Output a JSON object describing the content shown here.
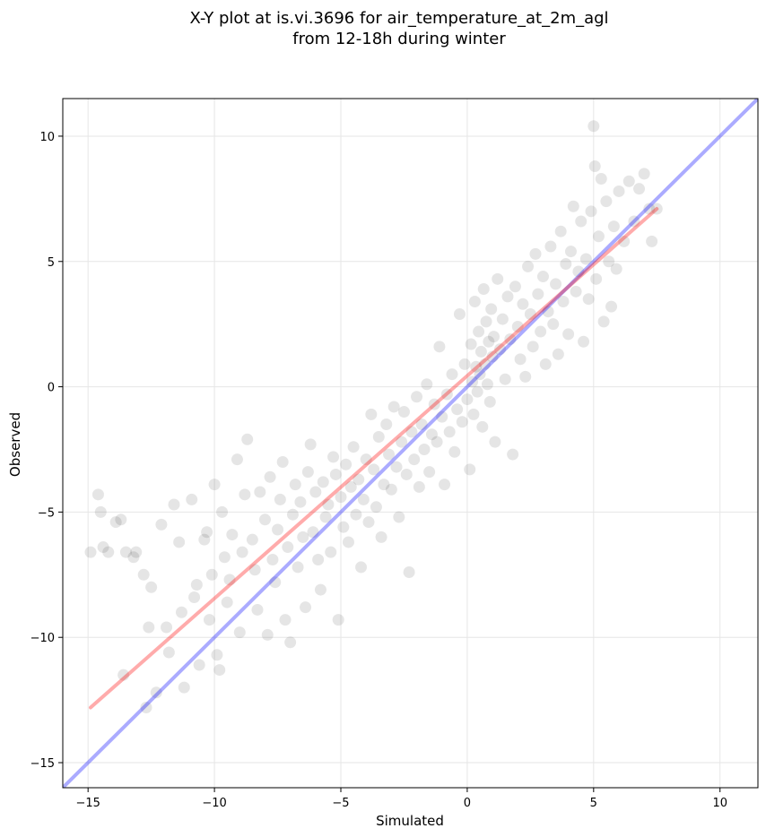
{
  "chart_data": {
    "type": "scatter",
    "title": [
      "X-Y plot at is.vi.3696 for air_temperature_at_2m_agl",
      "from 12-18h during winter"
    ],
    "xlabel": "Simulated",
    "ylabel": "Observed",
    "xlim": [
      -16,
      11.5
    ],
    "ylim": [
      -16,
      11.5
    ],
    "xticks": [
      -15,
      -10,
      -5,
      0,
      5,
      10
    ],
    "yticks": [
      -15,
      -10,
      -5,
      0,
      5,
      10
    ],
    "xtick_labels": [
      "−15",
      "−10",
      "−5",
      "0",
      "5",
      "10"
    ],
    "ytick_labels": [
      "−15",
      "−10",
      "−5",
      "0",
      "5",
      "10"
    ],
    "grid": true,
    "point_color": "#000000",
    "point_opacity": 0.1,
    "lines": [
      {
        "role": "identity (1:1)",
        "color": "#0000ff",
        "opacity": 0.33,
        "x": [
          -16,
          11.5
        ],
        "y": [
          -16,
          11.5
        ]
      },
      {
        "role": "fit",
        "color": "#ff0000",
        "opacity": 0.33,
        "x": [
          -14.9,
          7.5
        ],
        "y": [
          -12.8,
          7.1
        ]
      }
    ],
    "series": [
      {
        "points": [
          [
            -14.9,
            -6.6
          ],
          [
            -14.6,
            -4.3
          ],
          [
            -14.5,
            -5.0
          ],
          [
            -14.4,
            -6.4
          ],
          [
            -14.2,
            -6.6
          ],
          [
            -13.9,
            -5.4
          ],
          [
            -13.7,
            -5.3
          ],
          [
            -13.6,
            -11.5
          ],
          [
            -13.5,
            -6.6
          ],
          [
            -13.2,
            -6.8
          ],
          [
            -13.1,
            -6.6
          ],
          [
            -12.8,
            -7.5
          ],
          [
            -12.7,
            -12.8
          ],
          [
            -12.6,
            -9.6
          ],
          [
            -12.5,
            -8.0
          ],
          [
            -12.3,
            -12.2
          ],
          [
            -12.1,
            -5.5
          ],
          [
            -11.9,
            -9.6
          ],
          [
            -11.8,
            -10.6
          ],
          [
            -11.6,
            -4.7
          ],
          [
            -11.4,
            -6.2
          ],
          [
            -11.3,
            -9.0
          ],
          [
            -11.2,
            -12.0
          ],
          [
            -10.9,
            -4.5
          ],
          [
            -10.8,
            -8.4
          ],
          [
            -10.7,
            -7.9
          ],
          [
            -10.6,
            -11.1
          ],
          [
            -10.4,
            -6.1
          ],
          [
            -10.3,
            -5.8
          ],
          [
            -10.2,
            -9.3
          ],
          [
            -10.1,
            -7.5
          ],
          [
            -10.0,
            -3.9
          ],
          [
            -9.9,
            -10.7
          ],
          [
            -9.8,
            -11.3
          ],
          [
            -9.7,
            -5.0
          ],
          [
            -9.6,
            -6.8
          ],
          [
            -9.5,
            -8.6
          ],
          [
            -9.4,
            -7.7
          ],
          [
            -9.3,
            -5.9
          ],
          [
            -9.1,
            -2.9
          ],
          [
            -9.0,
            -9.8
          ],
          [
            -8.9,
            -6.6
          ],
          [
            -8.8,
            -4.3
          ],
          [
            -8.7,
            -2.1
          ],
          [
            -8.5,
            -6.1
          ],
          [
            -8.4,
            -7.3
          ],
          [
            -8.3,
            -8.9
          ],
          [
            -8.2,
            -4.2
          ],
          [
            -8.0,
            -5.3
          ],
          [
            -7.9,
            -9.9
          ],
          [
            -7.8,
            -3.6
          ],
          [
            -7.7,
            -6.9
          ],
          [
            -7.6,
            -7.8
          ],
          [
            -7.5,
            -5.7
          ],
          [
            -7.4,
            -4.5
          ],
          [
            -7.3,
            -3.0
          ],
          [
            -7.2,
            -9.3
          ],
          [
            -7.1,
            -6.4
          ],
          [
            -7.0,
            -10.2
          ],
          [
            -6.9,
            -5.1
          ],
          [
            -6.8,
            -3.9
          ],
          [
            -6.7,
            -7.2
          ],
          [
            -6.6,
            -4.6
          ],
          [
            -6.5,
            -6.0
          ],
          [
            -6.4,
            -8.8
          ],
          [
            -6.3,
            -3.4
          ],
          [
            -6.2,
            -2.3
          ],
          [
            -6.1,
            -5.8
          ],
          [
            -6.0,
            -4.2
          ],
          [
            -5.9,
            -6.9
          ],
          [
            -5.8,
            -8.1
          ],
          [
            -5.7,
            -3.8
          ],
          [
            -5.6,
            -5.2
          ],
          [
            -5.5,
            -4.7
          ],
          [
            -5.4,
            -6.6
          ],
          [
            -5.3,
            -2.8
          ],
          [
            -5.2,
            -3.5
          ],
          [
            -5.1,
            -9.3
          ],
          [
            -5.0,
            -4.4
          ],
          [
            -4.9,
            -5.6
          ],
          [
            -4.8,
            -3.1
          ],
          [
            -4.7,
            -6.2
          ],
          [
            -4.6,
            -4.0
          ],
          [
            -4.5,
            -2.4
          ],
          [
            -4.4,
            -5.1
          ],
          [
            -4.3,
            -3.7
          ],
          [
            -4.2,
            -7.2
          ],
          [
            -4.1,
            -4.5
          ],
          [
            -4.0,
            -2.9
          ],
          [
            -3.9,
            -5.4
          ],
          [
            -3.8,
            -1.1
          ],
          [
            -3.7,
            -3.3
          ],
          [
            -3.6,
            -4.8
          ],
          [
            -3.5,
            -2.0
          ],
          [
            -3.4,
            -6.0
          ],
          [
            -3.3,
            -3.9
          ],
          [
            -3.2,
            -1.5
          ],
          [
            -3.1,
            -2.7
          ],
          [
            -3.0,
            -4.1
          ],
          [
            -2.9,
            -0.8
          ],
          [
            -2.8,
            -3.2
          ],
          [
            -2.7,
            -5.2
          ],
          [
            -2.6,
            -2.2
          ],
          [
            -2.5,
            -1.0
          ],
          [
            -2.4,
            -3.5
          ],
          [
            -2.3,
            -7.4
          ],
          [
            -2.2,
            -1.8
          ],
          [
            -2.1,
            -2.9
          ],
          [
            -2.0,
            -0.4
          ],
          [
            -1.9,
            -4.0
          ],
          [
            -1.8,
            -1.5
          ],
          [
            -1.7,
            -2.5
          ],
          [
            -1.6,
            0.1
          ],
          [
            -1.5,
            -3.4
          ],
          [
            -1.4,
            -1.9
          ],
          [
            -1.3,
            -0.7
          ],
          [
            -1.2,
            -2.2
          ],
          [
            -1.1,
            1.6
          ],
          [
            -1.0,
            -1.2
          ],
          [
            -0.9,
            -3.9
          ],
          [
            -0.8,
            -0.3
          ],
          [
            -0.7,
            -1.8
          ],
          [
            -0.6,
            0.5
          ],
          [
            -0.5,
            -2.6
          ],
          [
            -0.4,
            -0.9
          ],
          [
            -0.3,
            2.9
          ],
          [
            -0.2,
            -1.4
          ],
          [
            -0.1,
            0.9
          ],
          [
            0.0,
            -0.5
          ],
          [
            0.1,
            -3.3
          ],
          [
            0.15,
            1.7
          ],
          [
            0.2,
            0.2
          ],
          [
            0.25,
            -1.1
          ],
          [
            0.3,
            3.4
          ],
          [
            0.35,
            0.8
          ],
          [
            0.4,
            -0.2
          ],
          [
            0.45,
            2.2
          ],
          [
            0.5,
            0.5
          ],
          [
            0.55,
            1.4
          ],
          [
            0.6,
            -1.6
          ],
          [
            0.65,
            3.9
          ],
          [
            0.7,
            0.9
          ],
          [
            0.75,
            2.6
          ],
          [
            0.8,
            0.1
          ],
          [
            0.85,
            1.8
          ],
          [
            0.9,
            -0.6
          ],
          [
            0.95,
            3.1
          ],
          [
            1.0,
            1.2
          ],
          [
            1.05,
            2.0
          ],
          [
            1.1,
            -2.2
          ],
          [
            1.2,
            4.3
          ],
          [
            1.3,
            1.5
          ],
          [
            1.4,
            2.7
          ],
          [
            1.5,
            0.3
          ],
          [
            1.6,
            3.6
          ],
          [
            1.7,
            1.9
          ],
          [
            1.8,
            -2.7
          ],
          [
            1.9,
            4.0
          ],
          [
            2.0,
            2.4
          ],
          [
            2.1,
            1.1
          ],
          [
            2.2,
            3.3
          ],
          [
            2.3,
            0.4
          ],
          [
            2.4,
            4.8
          ],
          [
            2.5,
            2.9
          ],
          [
            2.6,
            1.6
          ],
          [
            2.7,
            5.3
          ],
          [
            2.8,
            3.7
          ],
          [
            2.9,
            2.2
          ],
          [
            3.0,
            4.4
          ],
          [
            3.1,
            0.9
          ],
          [
            3.2,
            3.0
          ],
          [
            3.3,
            5.6
          ],
          [
            3.4,
            2.5
          ],
          [
            3.5,
            4.1
          ],
          [
            3.6,
            1.3
          ],
          [
            3.7,
            6.2
          ],
          [
            3.8,
            3.4
          ],
          [
            3.9,
            4.9
          ],
          [
            4.0,
            2.1
          ],
          [
            4.1,
            5.4
          ],
          [
            4.2,
            7.2
          ],
          [
            4.3,
            3.8
          ],
          [
            4.4,
            4.6
          ],
          [
            4.5,
            6.6
          ],
          [
            4.6,
            1.8
          ],
          [
            4.7,
            5.1
          ],
          [
            4.8,
            3.5
          ],
          [
            4.9,
            7.0
          ],
          [
            5.0,
            10.4
          ],
          [
            5.05,
            8.8
          ],
          [
            5.1,
            4.3
          ],
          [
            5.2,
            6.0
          ],
          [
            5.3,
            8.3
          ],
          [
            5.4,
            2.6
          ],
          [
            5.5,
            7.4
          ],
          [
            5.6,
            5.0
          ],
          [
            5.7,
            3.2
          ],
          [
            5.8,
            6.4
          ],
          [
            5.9,
            4.7
          ],
          [
            6.0,
            7.8
          ],
          [
            6.2,
            5.8
          ],
          [
            6.4,
            8.2
          ],
          [
            6.6,
            6.6
          ],
          [
            6.8,
            7.9
          ],
          [
            7.0,
            8.5
          ],
          [
            7.2,
            7.1
          ],
          [
            7.3,
            5.8
          ],
          [
            7.5,
            7.1
          ]
        ]
      }
    ]
  }
}
